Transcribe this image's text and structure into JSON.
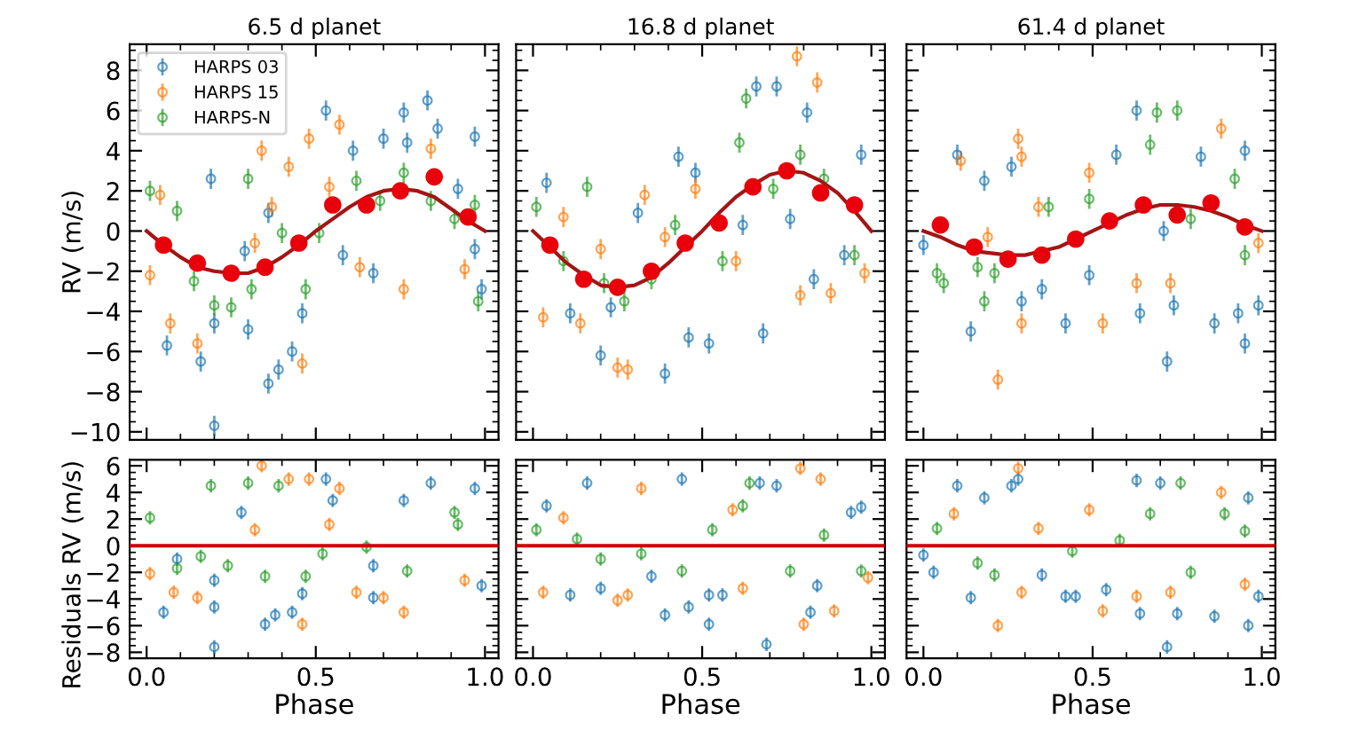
{
  "chart_data": [
    {
      "type": "scatter",
      "title": "6.5 d planet",
      "ylabel": "RV (m/s)",
      "legend": "top left",
      "tick_labels": "y",
      "xlim": [
        -0.05,
        1.04
      ],
      "ylim": [
        -10.4,
        9.3
      ],
      "xticks": [
        {
          "value": 0,
          "label": null
        },
        {
          "value": 0.5,
          "label": null
        },
        {
          "value": 1,
          "label": null
        }
      ],
      "yticks": [
        {
          "value": -10,
          "label": "−10"
        },
        {
          "value": -8,
          "label": "−8"
        },
        {
          "value": -6,
          "label": "−6"
        },
        {
          "value": -4,
          "label": "−4"
        },
        {
          "value": -2,
          "label": "−2"
        },
        0,
        2,
        4,
        6,
        8
      ],
      "series": [
        {
          "name": "HARPS 03",
          "color": "#1f77b4",
          "marker": "circle",
          "x": [
            0.06,
            0.16,
            0.2,
            0.2,
            0.3,
            0.29,
            0.36,
            0.39,
            0.43,
            0.46,
            0.53,
            0.58,
            0.61,
            0.67,
            0.7,
            0.76,
            0.83,
            0.86,
            0.92,
            0.97,
            0.99,
            0.97,
            0.19,
            0.36,
            0.77
          ],
          "values": [
            -5.7,
            -6.5,
            -4.6,
            -9.7,
            -4.9,
            -1,
            -7.6,
            -6.9,
            -6,
            -4.1,
            6.0,
            -1.2,
            4,
            -2.1,
            4.6,
            5.9,
            6.5,
            5.1,
            2.1,
            4.7,
            -2.9,
            -0.9,
            2.6,
            0.9,
            4.4
          ],
          "errors": [
            0.5,
            0.5,
            0.5,
            0.5,
            0.5,
            0.5,
            0.5,
            0.5,
            0.5,
            0.5,
            0.5,
            0.5,
            0.5,
            0.5,
            0.5,
            0.5,
            0.5,
            0.5,
            0.5,
            0.5,
            0.5,
            0.5,
            0.5,
            0.5,
            0.5
          ]
        },
        {
          "name": "HARPS 15",
          "color": "#ff7f0e",
          "marker": "circle",
          "x": [
            0.01,
            0.07,
            0.15,
            0.34,
            0.42,
            0.48,
            0.46,
            0.57,
            0.63,
            0.76,
            0.84,
            0.94,
            0.37,
            0.04,
            0.54,
            0.32
          ],
          "values": [
            -2.2,
            -4.6,
            -5.6,
            4.0,
            3.2,
            4.6,
            -6.6,
            5.3,
            -1.8,
            -2.9,
            4.1,
            -1.9,
            1.2,
            1.8,
            2.2,
            -0.6
          ],
          "errors": [
            0.5,
            0.5,
            0.5,
            0.5,
            0.5,
            0.5,
            0.5,
            0.5,
            0.5,
            0.5,
            0.5,
            0.5,
            0.5,
            0.5,
            0.5,
            0.5
          ]
        },
        {
          "name": "HARPS-N",
          "color": "#2ca02c",
          "marker": "circle",
          "x": [
            0.01,
            0.09,
            0.14,
            0.2,
            0.25,
            0.31,
            0.3,
            0.4,
            0.47,
            0.51,
            0.62,
            0.69,
            0.76,
            0.84,
            0.91,
            0.98,
            0.97
          ],
          "values": [
            2.0,
            1.0,
            -2.5,
            -3.7,
            -3.8,
            -2.9,
            2.6,
            -0.1,
            -2.9,
            -0.1,
            2.5,
            1.5,
            2.9,
            1.5,
            0.6,
            -3.5,
            1.3
          ],
          "errors": [
            0.5,
            0.5,
            0.5,
            0.5,
            0.5,
            0.5,
            0.5,
            0.5,
            0.5,
            0.5,
            0.5,
            0.5,
            0.5,
            0.5,
            0.5,
            0.5,
            0.5
          ]
        },
        {
          "type": "line",
          "color": "#a31515",
          "line_style": "solid",
          "x": [
            0,
            0.05,
            0.1,
            0.15,
            0.2,
            0.25,
            0.3,
            0.35,
            0.4,
            0.45,
            0.5,
            0.55,
            0.6,
            0.65,
            0.7,
            0.75,
            0.8,
            0.85,
            0.9,
            0.95,
            1.0
          ],
          "values": [
            0,
            -0.7,
            -1.3,
            -1.8,
            -2.0,
            -2.1,
            -2.1,
            -1.8,
            -1.3,
            -0.7,
            0,
            0.6,
            1.2,
            1.7,
            2.0,
            2.1,
            2.0,
            1.7,
            1.1,
            0.5,
            0
          ]
        },
        {
          "color": "#e8000b",
          "marker": "circle",
          "x": [
            0.05,
            0.15,
            0.25,
            0.35,
            0.45,
            0.55,
            0.65,
            0.75,
            0.85,
            0.95
          ],
          "values": [
            -0.7,
            -1.6,
            -2.1,
            -1.8,
            -0.6,
            1.3,
            1.3,
            2.0,
            2.7,
            0.7
          ]
        }
      ]
    },
    {
      "type": "scatter",
      "title": "16.8 d planet",
      "tick_labels": false,
      "xlim": [
        -0.05,
        1.04
      ],
      "ylim": [
        -10.4,
        9.3
      ],
      "xticks": [
        {
          "value": 0,
          "label": null
        },
        {
          "value": 0.5,
          "label": null
        },
        {
          "value": 1,
          "label": null
        }
      ],
      "yticks": [
        {
          "value": -10,
          "label": null
        },
        {
          "value": -8,
          "label": null
        },
        {
          "value": -6,
          "label": null
        },
        {
          "value": -4,
          "label": null
        },
        {
          "value": -2,
          "label": null
        },
        {
          "value": 0,
          "label": null
        },
        {
          "value": 2,
          "label": null
        },
        {
          "value": 4,
          "label": null
        },
        {
          "value": 6,
          "label": null
        },
        {
          "value": 8,
          "label": null
        }
      ],
      "series": [
        {
          "color": "#1f77b4",
          "marker": "circle",
          "x": [
            0.04,
            0.11,
            0.2,
            0.39,
            0.43,
            0.48,
            0.46,
            0.52,
            0.66,
            0.68,
            0.72,
            0.81,
            0.92,
            0.97,
            0.83,
            0.31,
            0.23,
            0.62,
            0.76
          ],
          "values": [
            2.4,
            -4.1,
            -6.2,
            -7.1,
            3.7,
            2.9,
            -5.3,
            -5.6,
            7.2,
            -5.1,
            7.2,
            5.9,
            -1.2,
            3.8,
            -2.4,
            0.9,
            -3.8,
            0.3,
            0.6
          ],
          "errors": [
            0.5,
            0.5,
            0.5,
            0.5,
            0.5,
            0.5,
            0.5,
            0.5,
            0.5,
            0.5,
            0.5,
            0.5,
            0.5,
            0.5,
            0.5,
            0.5,
            0.5,
            0.5,
            0.5
          ]
        },
        {
          "color": "#ff7f0e",
          "marker": "circle",
          "x": [
            0.03,
            0.14,
            0.25,
            0.28,
            0.33,
            0.48,
            0.6,
            0.78,
            0.79,
            0.84,
            0.88,
            0.98,
            0.09,
            0.39,
            0.2
          ],
          "values": [
            -4.3,
            -4.6,
            -6.8,
            -6.9,
            1.8,
            2.1,
            -1.5,
            8.7,
            -3.2,
            7.4,
            -3.1,
            -2.1,
            0.7,
            -0.3,
            -0.9
          ],
          "errors": [
            0.5,
            0.5,
            0.5,
            0.5,
            0.5,
            0.5,
            0.5,
            0.5,
            0.5,
            0.5,
            0.5,
            0.5,
            0.5,
            0.5,
            0.5
          ]
        },
        {
          "color": "#2ca02c",
          "marker": "circle",
          "x": [
            0.01,
            0.16,
            0.63,
            0.61,
            0.79,
            0.95,
            0.27,
            0.35,
            0.42,
            0.56,
            0.71,
            0.86,
            0.09,
            0.21
          ],
          "values": [
            1.2,
            2.2,
            6.6,
            4.4,
            3.8,
            -1.2,
            -3.5,
            -2.4,
            0.3,
            -1.5,
            2.1,
            2.6,
            -1.5,
            -2.6
          ],
          "errors": [
            0.5,
            0.5,
            0.5,
            0.5,
            0.5,
            0.5,
            0.5,
            0.5,
            0.5,
            0.5,
            0.5,
            0.5,
            0.5,
            0.5
          ]
        },
        {
          "type": "line",
          "color": "#a31515",
          "line_style": "solid",
          "x": [
            0,
            0.05,
            0.1,
            0.15,
            0.2,
            0.25,
            0.3,
            0.35,
            0.4,
            0.45,
            0.5,
            0.55,
            0.6,
            0.65,
            0.7,
            0.75,
            0.8,
            0.85,
            0.9,
            0.95,
            1.0
          ],
          "values": [
            0,
            -0.8,
            -1.6,
            -2.2,
            -2.7,
            -2.8,
            -2.7,
            -2.3,
            -1.6,
            -0.8,
            0,
            0.9,
            1.7,
            2.3,
            2.8,
            3.0,
            2.9,
            2.5,
            1.9,
            1.0,
            0
          ]
        },
        {
          "color": "#e8000b",
          "marker": "circle",
          "x": [
            0.05,
            0.15,
            0.25,
            0.35,
            0.45,
            0.55,
            0.65,
            0.75,
            0.85,
            0.95
          ],
          "values": [
            -0.7,
            -2.4,
            -2.8,
            -2.0,
            -0.6,
            0.4,
            2.2,
            3.0,
            1.9,
            1.3
          ]
        }
      ]
    },
    {
      "type": "scatter",
      "title": "61.4 d planet",
      "tick_labels": false,
      "xlim": [
        -0.05,
        1.04
      ],
      "ylim": [
        -10.4,
        9.3
      ],
      "xticks": [
        {
          "value": 0,
          "label": null
        },
        {
          "value": 0.5,
          "label": null
        },
        {
          "value": 1,
          "label": null
        }
      ],
      "yticks": [
        {
          "value": -10,
          "label": null
        },
        {
          "value": -8,
          "label": null
        },
        {
          "value": -6,
          "label": null
        },
        {
          "value": -4,
          "label": null
        },
        {
          "value": -2,
          "label": null
        },
        {
          "value": 0,
          "label": null
        },
        {
          "value": 2,
          "label": null
        },
        {
          "value": 4,
          "label": null
        },
        {
          "value": 6,
          "label": null
        },
        {
          "value": 8,
          "label": null
        }
      ],
      "series": [
        {
          "color": "#1f77b4",
          "marker": "circle",
          "x": [
            0.0,
            0.14,
            0.18,
            0.1,
            0.26,
            0.29,
            0.35,
            0.42,
            0.49,
            0.57,
            0.63,
            0.64,
            0.72,
            0.74,
            0.82,
            0.86,
            0.93,
            0.95,
            0.99,
            0.95,
            0.71
          ],
          "values": [
            -0.7,
            -5.0,
            2.5,
            3.8,
            3.2,
            -3.5,
            -2.9,
            -4.6,
            -2.2,
            3.8,
            6.0,
            -4.1,
            -6.5,
            -3.7,
            3.7,
            -4.6,
            -4.1,
            -5.6,
            -3.7,
            4.0,
            0.0
          ],
          "errors": [
            0.5,
            0.5,
            0.5,
            0.5,
            0.5,
            0.5,
            0.5,
            0.5,
            0.5,
            0.5,
            0.5,
            0.5,
            0.5,
            0.5,
            0.5,
            0.5,
            0.5,
            0.5,
            0.5,
            0.5,
            0.5
          ]
        },
        {
          "color": "#ff7f0e",
          "marker": "circle",
          "x": [
            0.22,
            0.28,
            0.29,
            0.29,
            0.53,
            0.63,
            0.73,
            0.88,
            0.11,
            0.34,
            0.49,
            0.99,
            0.19
          ],
          "values": [
            -7.4,
            4.6,
            3.7,
            -4.6,
            -4.6,
            -2.6,
            -2.6,
            5.1,
            3.5,
            1.2,
            2.9,
            -0.6,
            -0.3
          ],
          "errors": [
            0.5,
            0.5,
            0.5,
            0.5,
            0.5,
            0.5,
            0.5,
            0.5,
            0.5,
            0.5,
            0.5,
            0.5,
            0.5
          ]
        },
        {
          "color": "#2ca02c",
          "marker": "circle",
          "x": [
            0.04,
            0.06,
            0.16,
            0.21,
            0.18,
            0.69,
            0.75,
            0.67,
            0.49,
            0.79,
            0.95,
            0.37,
            0.92
          ],
          "values": [
            -2.1,
            -2.6,
            -1.8,
            -2.1,
            -3.5,
            5.9,
            6.0,
            4.3,
            1.6,
            0.6,
            -1.2,
            1.2,
            2.6
          ],
          "errors": [
            0.5,
            0.5,
            0.5,
            0.5,
            0.5,
            0.5,
            0.5,
            0.5,
            0.5,
            0.5,
            0.5,
            0.5,
            0.5
          ]
        },
        {
          "type": "line",
          "color": "#a31515",
          "line_style": "solid",
          "x": [
            0,
            0.05,
            0.1,
            0.15,
            0.2,
            0.25,
            0.3,
            0.35,
            0.4,
            0.45,
            0.5,
            0.55,
            0.6,
            0.65,
            0.7,
            0.75,
            0.8,
            0.85,
            0.9,
            0.95,
            1.0
          ],
          "values": [
            0,
            -0.3,
            -0.7,
            -1.0,
            -1.1,
            -1.2,
            -1.2,
            -1.0,
            -0.8,
            -0.4,
            0,
            0.4,
            0.8,
            1.1,
            1.3,
            1.3,
            1.2,
            1.0,
            0.7,
            0.3,
            0
          ]
        },
        {
          "color": "#e8000b",
          "marker": "circle",
          "x": [
            0.05,
            0.15,
            0.25,
            0.35,
            0.45,
            0.55,
            0.65,
            0.75,
            0.85,
            0.95
          ],
          "values": [
            0.3,
            -0.8,
            -1.4,
            -1.2,
            -0.4,
            0.5,
            1.3,
            0.8,
            1.4,
            0.2
          ]
        }
      ]
    },
    {
      "type": "scatter",
      "xlabel": "Phase",
      "ylabel": "Residuals RV (m/s)",
      "xlim": [
        -0.05,
        1.04
      ],
      "ylim": [
        -8.45,
        6.45
      ],
      "xticks": [
        {
          "value": 0,
          "label": "0.0"
        },
        {
          "value": 0.5,
          "label": "0.5"
        },
        {
          "value": 1,
          "label": "1.0"
        }
      ],
      "yticks": [
        {
          "value": -8,
          "label": "−8"
        },
        {
          "value": -6,
          "label": "−6"
        },
        {
          "value": -4,
          "label": "−4"
        },
        {
          "value": -2,
          "label": "−2"
        },
        0,
        2,
        4,
        6
      ],
      "ref_lines": [
        {
          "axis": "y",
          "value": 0,
          "color": "#cc0000"
        }
      ],
      "series": [
        {
          "color": "#1f77b4",
          "marker": "circle",
          "x": [
            0.05,
            0.2,
            0.2,
            0.2,
            0.35,
            0.38,
            0.43,
            0.46,
            0.53,
            0.55,
            0.67,
            0.67,
            0.84,
            0.97,
            0.99,
            0.76,
            0.28,
            0.09
          ],
          "values": [
            -5.0,
            -2.6,
            -4.6,
            -7.6,
            -5.9,
            -5.2,
            -5.0,
            -3.6,
            5.0,
            3.4,
            -1.5,
            -3.9,
            4.7,
            4.3,
            -3.0,
            3.4,
            2.5,
            -1.0
          ],
          "errors": [
            0.5,
            0.5,
            0.5,
            0.5,
            0.5,
            0.5,
            0.5,
            0.5,
            0.5,
            0.5,
            0.5,
            0.5,
            0.5,
            0.5,
            0.5,
            0.5,
            0.5,
            0.5
          ]
        },
        {
          "color": "#ff7f0e",
          "marker": "circle",
          "x": [
            0.01,
            0.08,
            0.15,
            0.34,
            0.42,
            0.46,
            0.48,
            0.57,
            0.62,
            0.76,
            0.7,
            0.94,
            0.54,
            0.32
          ],
          "values": [
            -2.1,
            -3.5,
            -3.9,
            6.0,
            5.0,
            -5.9,
            5.0,
            4.3,
            -3.5,
            -5.0,
            -3.9,
            -2.6,
            1.6,
            1.2
          ],
          "errors": [
            0.5,
            0.5,
            0.5,
            0.5,
            0.5,
            0.5,
            0.5,
            0.5,
            0.5,
            0.5,
            0.5,
            0.5,
            0.5,
            0.5
          ]
        },
        {
          "color": "#2ca02c",
          "marker": "circle",
          "x": [
            0.19,
            0.3,
            0.39,
            0.01,
            0.09,
            0.16,
            0.24,
            0.35,
            0.47,
            0.52,
            0.65,
            0.77,
            0.91,
            0.92
          ],
          "values": [
            4.5,
            4.7,
            4.5,
            2.1,
            -1.7,
            -0.8,
            -1.5,
            -2.3,
            -2.3,
            -0.6,
            -0.1,
            -1.9,
            2.5,
            1.6
          ],
          "errors": [
            0.5,
            0.5,
            0.5,
            0.5,
            0.5,
            0.5,
            0.5,
            0.5,
            0.5,
            0.5,
            0.5,
            0.5,
            0.5,
            0.5
          ]
        }
      ]
    },
    {
      "type": "scatter",
      "xlabel": "Phase",
      "tick_labels": "x",
      "xlim": [
        -0.05,
        1.04
      ],
      "ylim": [
        -8.45,
        6.45
      ],
      "xticks": [
        {
          "value": 0,
          "label": "0.0"
        },
        {
          "value": 0.5,
          "label": "0.5"
        },
        {
          "value": 1,
          "label": "1.0"
        }
      ],
      "yticks": [
        {
          "value": -8,
          "label": null
        },
        {
          "value": -6,
          "label": null
        },
        {
          "value": -4,
          "label": null
        },
        {
          "value": -2,
          "label": null
        },
        {
          "value": 0,
          "label": null
        },
        {
          "value": 2,
          "label": null
        },
        {
          "value": 4,
          "label": null
        },
        {
          "value": 6,
          "label": null
        }
      ],
      "ref_lines": [
        {
          "axis": "y",
          "value": 0,
          "color": "#cc0000"
        }
      ],
      "series": [
        {
          "color": "#1f77b4",
          "marker": "circle",
          "x": [
            0.16,
            0.44,
            0.39,
            0.46,
            0.52,
            0.52,
            0.56,
            0.67,
            0.69,
            0.72,
            0.82,
            0.84,
            0.94,
            0.97,
            0.11,
            0.2,
            0.04,
            0.35
          ],
          "values": [
            4.7,
            5.0,
            -5.2,
            -4.6,
            -5.9,
            -3.7,
            -3.7,
            4.7,
            -7.4,
            4.5,
            -5.0,
            -3.0,
            2.5,
            2.9,
            -3.7,
            -3.2,
            3.0,
            -2.3
          ],
          "errors": [
            0.5,
            0.5,
            0.5,
            0.5,
            0.5,
            0.5,
            0.5,
            0.5,
            0.5,
            0.5,
            0.5,
            0.5,
            0.5,
            0.5,
            0.5,
            0.5,
            0.5,
            0.5
          ]
        },
        {
          "color": "#ff7f0e",
          "marker": "circle",
          "x": [
            0.03,
            0.25,
            0.28,
            0.32,
            0.79,
            0.85,
            0.8,
            0.89,
            0.99,
            0.59,
            0.09,
            0.62
          ],
          "values": [
            -3.5,
            -4.1,
            -3.7,
            4.3,
            5.8,
            5.0,
            -5.9,
            -4.9,
            -2.4,
            2.7,
            2.1,
            -3.2
          ],
          "errors": [
            0.5,
            0.5,
            0.5,
            0.5,
            0.5,
            0.5,
            0.5,
            0.5,
            0.5,
            0.5,
            0.5,
            0.5
          ]
        },
        {
          "color": "#2ca02c",
          "marker": "circle",
          "x": [
            0.01,
            0.64,
            0.62,
            0.97,
            0.2,
            0.44,
            0.32,
            0.76,
            0.86,
            0.53,
            0.13
          ],
          "values": [
            1.2,
            4.7,
            3.0,
            -1.9,
            -1.0,
            -1.9,
            -0.6,
            -1.9,
            0.8,
            1.2,
            0.5
          ],
          "errors": [
            0.5,
            0.5,
            0.5,
            0.5,
            0.5,
            0.5,
            0.5,
            0.5,
            0.5,
            0.5,
            0.5
          ]
        }
      ]
    },
    {
      "type": "scatter",
      "xlabel": "Phase",
      "tick_labels": "x",
      "xlim": [
        -0.05,
        1.04
      ],
      "ylim": [
        -8.45,
        6.45
      ],
      "xticks": [
        {
          "value": 0,
          "label": "0.0"
        },
        {
          "value": 0.5,
          "label": "0.5"
        },
        {
          "value": 1,
          "label": "1.0"
        }
      ],
      "yticks": [
        {
          "value": -8,
          "label": null
        },
        {
          "value": -6,
          "label": null
        },
        {
          "value": -4,
          "label": null
        },
        {
          "value": -2,
          "label": null
        },
        {
          "value": 0,
          "label": null
        },
        {
          "value": 2,
          "label": null
        },
        {
          "value": 4,
          "label": null
        },
        {
          "value": 6,
          "label": null
        }
      ],
      "ref_lines": [
        {
          "axis": "y",
          "value": 0,
          "color": "#cc0000"
        }
      ],
      "series": [
        {
          "color": "#1f77b4",
          "marker": "circle",
          "x": [
            0.0,
            0.03,
            0.14,
            0.1,
            0.18,
            0.26,
            0.28,
            0.35,
            0.42,
            0.45,
            0.54,
            0.63,
            0.64,
            0.72,
            0.75,
            0.86,
            0.96,
            0.96,
            0.99,
            0.7
          ],
          "values": [
            -0.7,
            -2.0,
            -3.9,
            4.5,
            3.6,
            4.5,
            5.0,
            -2.2,
            -3.8,
            -3.8,
            -3.3,
            4.9,
            -5.1,
            -7.6,
            -5.1,
            -5.3,
            3.6,
            -6.0,
            -3.8,
            4.7
          ],
          "errors": [
            0.5,
            0.5,
            0.5,
            0.5,
            0.5,
            0.5,
            0.5,
            0.5,
            0.5,
            0.5,
            0.5,
            0.5,
            0.5,
            0.5,
            0.5,
            0.5,
            0.5,
            0.5,
            0.5,
            0.5
          ]
        },
        {
          "color": "#ff7f0e",
          "marker": "circle",
          "x": [
            0.22,
            0.28,
            0.29,
            0.53,
            0.63,
            0.73,
            0.88,
            0.95,
            0.09,
            0.49,
            0.34
          ],
          "values": [
            -6.0,
            5.8,
            -3.5,
            -4.9,
            -3.8,
            -3.5,
            4.0,
            -2.9,
            2.4,
            2.7,
            1.3
          ],
          "errors": [
            0.5,
            0.5,
            0.5,
            0.5,
            0.5,
            0.5,
            0.5,
            0.5,
            0.5,
            0.5,
            0.5
          ]
        },
        {
          "color": "#2ca02c",
          "marker": "circle",
          "x": [
            0.04,
            0.16,
            0.21,
            0.76,
            0.67,
            0.79,
            0.95,
            0.44,
            0.58,
            0.89
          ],
          "values": [
            1.3,
            -1.3,
            -2.2,
            4.7,
            2.4,
            -2.0,
            1.1,
            -0.4,
            0.4,
            2.4
          ],
          "errors": [
            0.5,
            0.5,
            0.5,
            0.5,
            0.5,
            0.5,
            0.5,
            0.5,
            0.5,
            0.5
          ]
        }
      ]
    }
  ]
}
